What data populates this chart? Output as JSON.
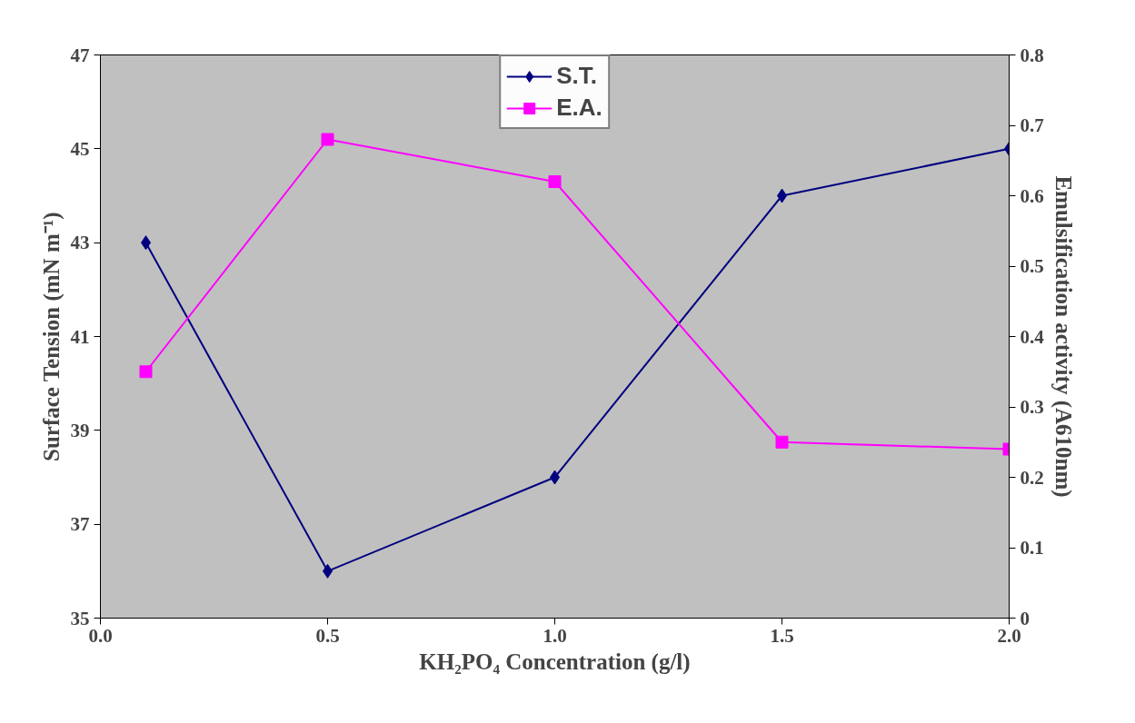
{
  "chart_data": {
    "type": "line",
    "xlabel": "KH₂PO₄ Concentration (g/l)",
    "ylabel": "Surface Tension (mN m⁻¹)",
    "y2label": "Emulsification activity (A610nm)",
    "x": [
      0.1,
      0.5,
      1.0,
      1.5,
      2.0
    ],
    "series": [
      {
        "name": "S.T.",
        "color": "#000080",
        "marker": "diamond",
        "values": [
          43,
          36,
          38,
          44,
          45
        ]
      },
      {
        "name": "E.A.",
        "color": "#ff00ff",
        "marker": "square",
        "axis": "y2",
        "values": [
          0.35,
          0.68,
          0.62,
          0.25,
          0.24
        ]
      }
    ],
    "xlim": [
      0,
      2
    ],
    "xticks": [
      {
        "value": 0,
        "label": "0.0"
      },
      0.5,
      {
        "value": 1,
        "label": "1.0"
      },
      1.5,
      {
        "value": 2,
        "label": "2.0"
      }
    ],
    "ylim": [
      35,
      47
    ],
    "yticks": [
      35,
      37,
      39,
      41,
      43,
      45,
      47
    ],
    "y2lim": [
      0,
      0.8
    ],
    "y2ticks": [
      0,
      0.1,
      0.2,
      0.3,
      0.4,
      0.5,
      0.6,
      0.7,
      0.8
    ],
    "grid": false,
    "legend": "top",
    "line_style": "solid"
  }
}
